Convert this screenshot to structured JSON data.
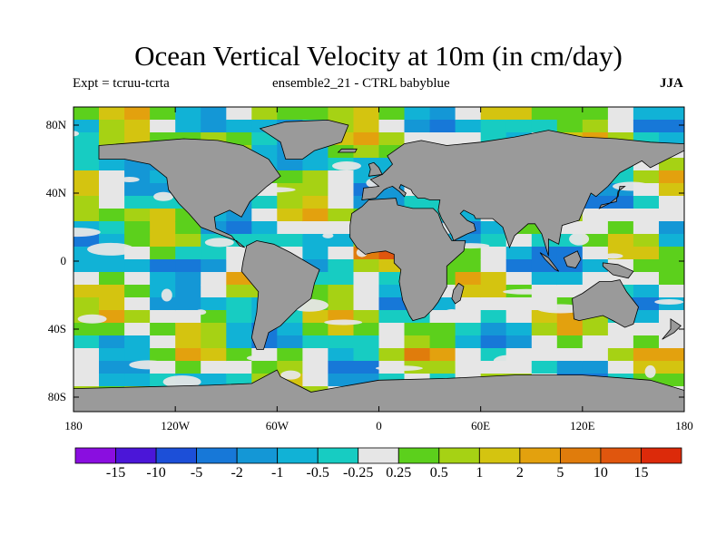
{
  "title": "Ocean Vertical Velocity at 10m (in cm/day)",
  "subtitle_left": "Expt = tcruu-tcrta",
  "subtitle_center": "ensemble2_21 - CTRL babyblue",
  "season": "JJA",
  "lat_ticks": [
    {
      "label": "80N",
      "lat": 80
    },
    {
      "label": "40N",
      "lat": 40
    },
    {
      "label": "0",
      "lat": 0
    },
    {
      "label": "40S",
      "lat": -40
    },
    {
      "label": "80S",
      "lat": -80
    }
  ],
  "lon_ticks": [
    {
      "label": "180",
      "lon": -180
    },
    {
      "label": "120W",
      "lon": -120
    },
    {
      "label": "60W",
      "lon": -60
    },
    {
      "label": "0",
      "lon": 0
    },
    {
      "label": "60E",
      "lon": 60
    },
    {
      "label": "120E",
      "lon": 120
    },
    {
      "label": "180",
      "lon": 180
    }
  ],
  "colorbar": {
    "levels": [
      "-15",
      "-10",
      "-5",
      "-2",
      "-1",
      "-0.5",
      "-0.25",
      "0.25",
      "0.5",
      "1",
      "2",
      "5",
      "10",
      "15"
    ],
    "colors": [
      "#8a0ee0",
      "#4b16d8",
      "#1c4fd8",
      "#1778d8",
      "#1497d6",
      "#11b2d6",
      "#17ccc2",
      "#e6e6e6",
      "#5cd01c",
      "#a6d214",
      "#d4c410",
      "#e3a10e",
      "#e07c0c",
      "#e0560e",
      "#dc2a0a"
    ]
  },
  "land_color": "#9a9a9a"
}
